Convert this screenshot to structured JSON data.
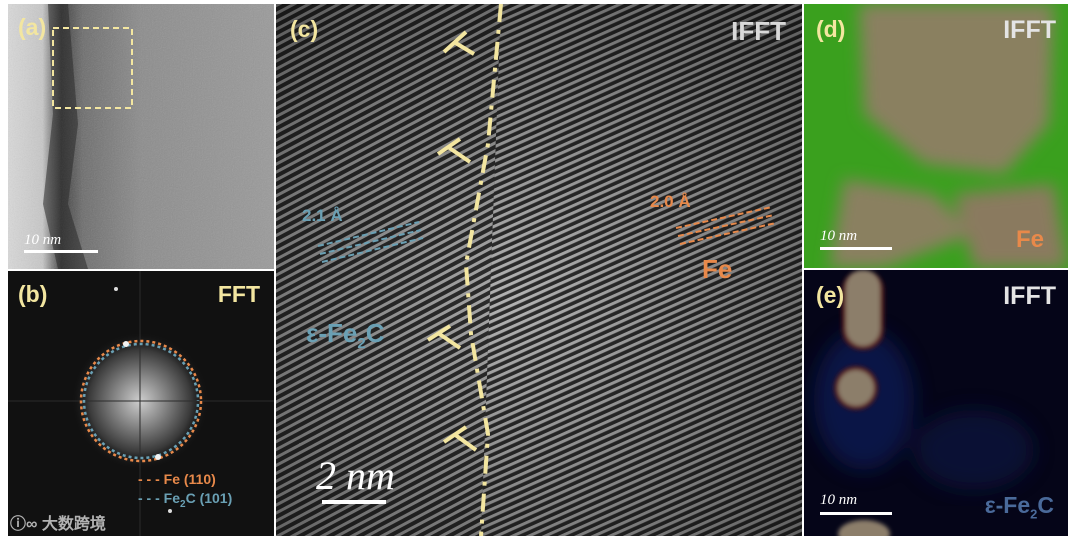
{
  "panels": {
    "a": {
      "label": "(a)",
      "scale": "10 nm"
    },
    "b": {
      "label": "(b)",
      "title": "FFT",
      "legend": [
        {
          "text": "Fe (110)",
          "color": "#e8894a"
        },
        {
          "text": "Fe",
          "sub": "2",
          "tail": "C (101)",
          "color": "#6aa0b4"
        }
      ]
    },
    "c": {
      "label": "(c)",
      "title": "IFFT",
      "scale": "2 nm",
      "left_phase": {
        "name": "ε-Fe",
        "sub": "2",
        "tail": "C",
        "color": "#6aa0b4"
      },
      "left_spacing": "2.1 Å",
      "right_phase": "Fe",
      "right_spacing": "2.0 Å",
      "right_color": "#e8894a"
    },
    "d": {
      "label": "(d)",
      "title": "IFFT",
      "scale": "10 nm",
      "element": "Fe"
    },
    "e": {
      "label": "(e)",
      "title": "IFFT",
      "scale": "10 nm",
      "element": {
        "name": "ε-Fe",
        "sub": "2",
        "tail": "C"
      }
    }
  },
  "watermark": "大数跨境"
}
